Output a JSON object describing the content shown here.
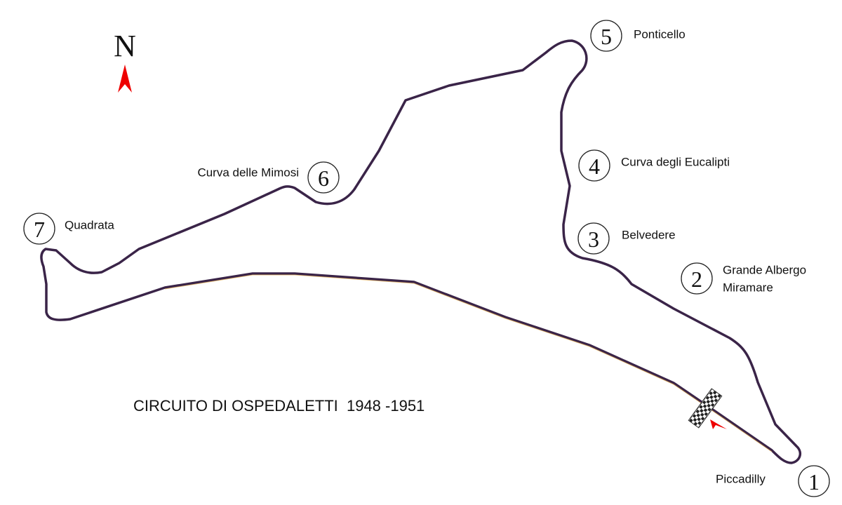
{
  "compass": "N",
  "title": "CIRCUITO DI OSPEDALETTI  1948 -1951",
  "corners": [
    {
      "number": 1,
      "name_lines": [
        "Piccadilly"
      ]
    },
    {
      "number": 2,
      "name_lines": [
        "Grande Albergo",
        "Miramare"
      ]
    },
    {
      "number": 3,
      "name_lines": [
        "Belvedere"
      ]
    },
    {
      "number": 4,
      "name_lines": [
        "Curva degli Eucalipti"
      ]
    },
    {
      "number": 5,
      "name_lines": [
        "Ponticello"
      ]
    },
    {
      "number": 6,
      "name_lines": [
        "Curva delle Mimosi"
      ]
    },
    {
      "number": 7,
      "name_lines": [
        "Quadrata"
      ]
    }
  ]
}
